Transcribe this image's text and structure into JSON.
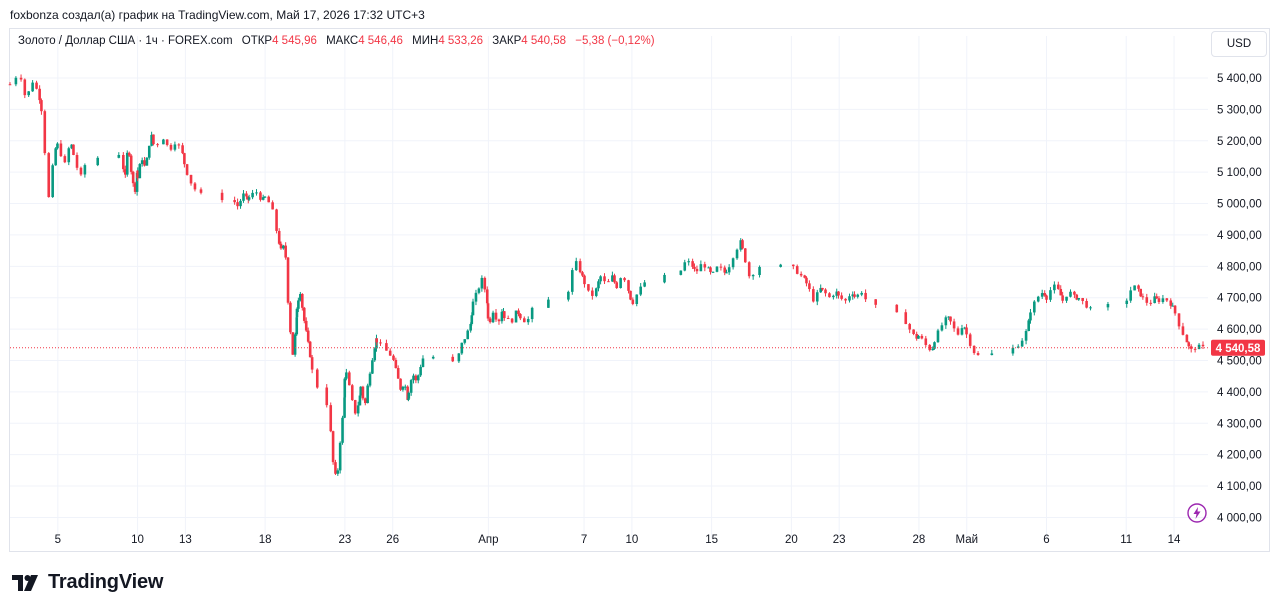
{
  "header": {
    "text": "foxbonza создал(а) график на TradingView.com, Май 17, 2026 17:32 UTC+3"
  },
  "legend": {
    "symbol": "Золото / Доллар США · 1ч · FOREX.com",
    "open_label": "ОТКР",
    "open_value": "4 545,96",
    "high_label": "МАКС",
    "high_value": "4 546,46",
    "low_label": "МИН",
    "low_value": "4 533,26",
    "close_label": "ЗАКР",
    "close_value": "4 540,58",
    "change": "−5,38 (−0,12%)"
  },
  "currency_button": "USD",
  "price_badge": "4 540,58",
  "brand": {
    "name": "TradingView"
  },
  "colors": {
    "up": "#089981",
    "down": "#f23645",
    "grid": "#f0f3fa",
    "text": "#131722",
    "last_price": "#f23645"
  },
  "icons": {
    "alert": "lightning-alert-icon",
    "logo": "tradingview-logo-icon"
  },
  "chart_data": {
    "type": "candlestick",
    "title": "Золото / Доллар США · 1ч · FOREX.com",
    "y_axis": {
      "ticks": [
        4000,
        4100,
        4200,
        4300,
        4400,
        4500,
        4600,
        4700,
        4800,
        4900,
        5000,
        5100,
        5200,
        5300,
        5400
      ],
      "tick_labels": [
        "4 000,00",
        "4 100,00",
        "4 200,00",
        "4 300,00",
        "4 400,00",
        "4 500,00",
        "4 600,00",
        "4 700,00",
        "4 800,00",
        "4 900,00",
        "5 000,00",
        "5 100,00",
        "5 200,00",
        "5 300,00",
        "5 400,00"
      ],
      "range": [
        3960,
        5470
      ]
    },
    "x_axis": {
      "tick_labels": [
        "5",
        "10",
        "13",
        "18",
        "23",
        "26",
        "Апр",
        "7",
        "10",
        "15",
        "20",
        "23",
        "28",
        "Май",
        "6",
        "11",
        "14"
      ],
      "range": [
        "2026-03-02",
        "2026-05-15"
      ]
    },
    "grid": true,
    "last_price": 4540.58,
    "price_path": [
      [
        "2026-03-02",
        5380
      ],
      [
        "2026-03-02",
        5420
      ],
      [
        "2026-03-03",
        5330
      ],
      [
        "2026-03-03",
        5390
      ],
      [
        "2026-03-03",
        5350
      ],
      [
        "2026-03-04",
        5290
      ],
      [
        "2026-03-04",
        5010
      ],
      [
        "2026-03-04",
        5170
      ],
      [
        "2026-03-05",
        5190
      ],
      [
        "2026-03-05",
        5120
      ],
      [
        "2026-03-05",
        5200
      ],
      [
        "2026-03-06",
        5150
      ],
      [
        "2026-03-06",
        5080
      ],
      [
        "2026-03-06",
        5140
      ],
      [
        "2026-03-09",
        5160
      ],
      [
        "2026-03-09",
        5070
      ],
      [
        "2026-03-09",
        5190
      ],
      [
        "2026-03-09",
        5100
      ],
      [
        "2026-03-09",
        5030
      ],
      [
        "2026-03-09",
        5120
      ],
      [
        "2026-03-10",
        5080
      ],
      [
        "2026-03-10",
        5150
      ],
      [
        "2026-03-10",
        5110
      ],
      [
        "2026-03-10",
        5190
      ],
      [
        "2026-03-10",
        5230
      ],
      [
        "2026-03-11",
        5180
      ],
      [
        "2026-03-11",
        5210
      ],
      [
        "2026-03-12",
        5170
      ],
      [
        "2026-03-12",
        5200
      ],
      [
        "2026-03-12",
        5160
      ],
      [
        "2026-03-13",
        5110
      ],
      [
        "2026-03-13",
        5060
      ],
      [
        "2026-03-13",
        5030
      ],
      [
        "2026-03-16",
        5010
      ],
      [
        "2026-03-16",
        4990
      ],
      [
        "2026-03-16",
        5030
      ],
      [
        "2026-03-16",
        5010
      ],
      [
        "2026-03-17",
        5020
      ],
      [
        "2026-03-17",
        5040
      ],
      [
        "2026-03-17",
        5010
      ],
      [
        "2026-03-18",
        5020
      ],
      [
        "2026-03-18",
        4990
      ],
      [
        "2026-03-18",
        4890
      ],
      [
        "2026-03-19",
        4850
      ],
      [
        "2026-03-19",
        4870
      ],
      [
        "2026-03-19",
        4640
      ],
      [
        "2026-03-19",
        4520
      ],
      [
        "2026-03-19",
        4620
      ],
      [
        "2026-03-20",
        4680
      ],
      [
        "2026-03-20",
        4720
      ],
      [
        "2026-03-20",
        4640
      ],
      [
        "2026-03-20",
        4580
      ],
      [
        "2026-03-20",
        4520
      ],
      [
        "2026-03-20",
        4440
      ],
      [
        "2026-03-22",
        4350
      ],
      [
        "2026-03-22",
        4180
      ],
      [
        "2026-03-22",
        4110
      ],
      [
        "2026-03-22",
        4260
      ],
      [
        "2026-03-22",
        4370
      ],
      [
        "2026-03-23",
        4480
      ],
      [
        "2026-03-23",
        4410
      ],
      [
        "2026-03-23",
        4330
      ],
      [
        "2026-03-23",
        4370
      ],
      [
        "2026-03-24",
        4420
      ],
      [
        "2026-03-24",
        4350
      ],
      [
        "2026-03-24",
        4440
      ],
      [
        "2026-03-24",
        4510
      ],
      [
        "2026-03-24",
        4570
      ],
      [
        "2026-03-25",
        4560
      ],
      [
        "2026-03-25",
        4530
      ],
      [
        "2026-03-26",
        4510
      ],
      [
        "2026-03-26",
        4460
      ],
      [
        "2026-03-26",
        4410
      ],
      [
        "2026-03-26",
        4430
      ],
      [
        "2026-03-26",
        4370
      ],
      [
        "2026-03-27",
        4400
      ],
      [
        "2026-03-27",
        4460
      ],
      [
        "2026-03-27",
        4430
      ],
      [
        "2026-03-27",
        4480
      ],
      [
        "2026-03-27",
        4520
      ],
      [
        "2026-03-30",
        4490
      ],
      [
        "2026-03-30",
        4550
      ],
      [
        "2026-03-30",
        4580
      ],
      [
        "2026-03-30",
        4620
      ],
      [
        "2026-03-31",
        4680
      ],
      [
        "2026-03-31",
        4720
      ],
      [
        "2026-03-31",
        4760
      ],
      [
        "2026-03-31",
        4700
      ],
      [
        "2026-04-01",
        4610
      ],
      [
        "2026-04-01",
        4660
      ],
      [
        "2026-04-01",
        4620
      ],
      [
        "2026-04-01",
        4670
      ],
      [
        "2026-04-02",
        4640
      ],
      [
        "2026-04-02",
        4620
      ],
      [
        "2026-04-02",
        4660
      ],
      [
        "2026-04-03",
        4640
      ],
      [
        "2026-04-03",
        4620
      ],
      [
        "2026-04-03",
        4670
      ],
      [
        "2026-04-06",
        4720
      ],
      [
        "2026-04-06",
        4820
      ],
      [
        "2026-04-06",
        4780
      ],
      [
        "2026-04-07",
        4750
      ],
      [
        "2026-04-07",
        4700
      ],
      [
        "2026-04-07",
        4730
      ],
      [
        "2026-04-08",
        4770
      ],
      [
        "2026-04-08",
        4740
      ],
      [
        "2026-04-08",
        4770
      ],
      [
        "2026-04-09",
        4730
      ],
      [
        "2026-04-09",
        4780
      ],
      [
        "2026-04-09",
        4720
      ],
      [
        "2026-04-10",
        4680
      ],
      [
        "2026-04-10",
        4720
      ],
      [
        "2026-04-10",
        4750
      ],
      [
        "2026-04-13",
        4780
      ],
      [
        "2026-04-13",
        4820
      ],
      [
        "2026-04-13",
        4800
      ],
      [
        "2026-04-14",
        4780
      ],
      [
        "2026-04-14",
        4810
      ],
      [
        "2026-04-14",
        4790
      ],
      [
        "2026-04-15",
        4770
      ],
      [
        "2026-04-15",
        4800
      ],
      [
        "2026-04-15",
        4780
      ],
      [
        "2026-04-16",
        4790
      ],
      [
        "2026-04-16",
        4840
      ],
      [
        "2026-04-16",
        4880
      ],
      [
        "2026-04-17",
        4840
      ],
      [
        "2026-04-17",
        4760
      ],
      [
        "2026-04-17",
        4800
      ],
      [
        "2026-04-20",
        4800
      ],
      [
        "2026-04-20",
        4780
      ],
      [
        "2026-04-20",
        4760
      ],
      [
        "2026-04-21",
        4740
      ],
      [
        "2026-04-21",
        4690
      ],
      [
        "2026-04-21",
        4730
      ],
      [
        "2026-04-22",
        4720
      ],
      [
        "2026-04-22",
        4700
      ],
      [
        "2026-04-22",
        4720
      ],
      [
        "2026-04-23",
        4700
      ],
      [
        "2026-04-23",
        4690
      ],
      [
        "2026-04-23",
        4720
      ],
      [
        "2026-04-24",
        4700
      ],
      [
        "2026-04-24",
        4720
      ],
      [
        "2026-04-24",
        4680
      ],
      [
        "2026-04-27",
        4640
      ],
      [
        "2026-04-27",
        4600
      ],
      [
        "2026-04-27",
        4570
      ],
      [
        "2026-04-28",
        4580
      ],
      [
        "2026-04-28",
        4550
      ],
      [
        "2026-04-28",
        4530
      ],
      [
        "2026-04-29",
        4570
      ],
      [
        "2026-04-29",
        4610
      ],
      [
        "2026-04-29",
        4640
      ],
      [
        "2026-04-30",
        4620
      ],
      [
        "2026-04-30",
        4580
      ],
      [
        "2026-04-30",
        4620
      ],
      [
        "2026-05-01",
        4580
      ],
      [
        "2026-05-01",
        4530
      ],
      [
        "2026-05-01",
        4510
      ],
      [
        "2026-05-04",
        4540
      ],
      [
        "2026-05-04",
        4560
      ],
      [
        "2026-05-04",
        4600
      ],
      [
        "2026-05-05",
        4660
      ],
      [
        "2026-05-05",
        4700
      ],
      [
        "2026-05-05",
        4720
      ],
      [
        "2026-05-06",
        4700
      ],
      [
        "2026-05-06",
        4740
      ],
      [
        "2026-05-06",
        4720
      ],
      [
        "2026-05-07",
        4690
      ],
      [
        "2026-05-07",
        4720
      ],
      [
        "2026-05-07",
        4700
      ],
      [
        "2026-05-08",
        4700
      ],
      [
        "2026-05-08",
        4680
      ],
      [
        "2026-05-08",
        4660
      ],
      [
        "2026-05-11",
        4690
      ],
      [
        "2026-05-11",
        4740
      ],
      [
        "2026-05-11",
        4720
      ],
      [
        "2026-05-12",
        4700
      ],
      [
        "2026-05-12",
        4680
      ],
      [
        "2026-05-12",
        4700
      ],
      [
        "2026-05-13",
        4690
      ],
      [
        "2026-05-13",
        4700
      ],
      [
        "2026-05-13",
        4680
      ],
      [
        "2026-05-14",
        4660
      ],
      [
        "2026-05-14",
        4600
      ],
      [
        "2026-05-14",
        4560
      ],
      [
        "2026-05-15",
        4530
      ],
      [
        "2026-05-15",
        4545
      ],
      [
        "2026-05-15",
        4540.58
      ]
    ]
  }
}
